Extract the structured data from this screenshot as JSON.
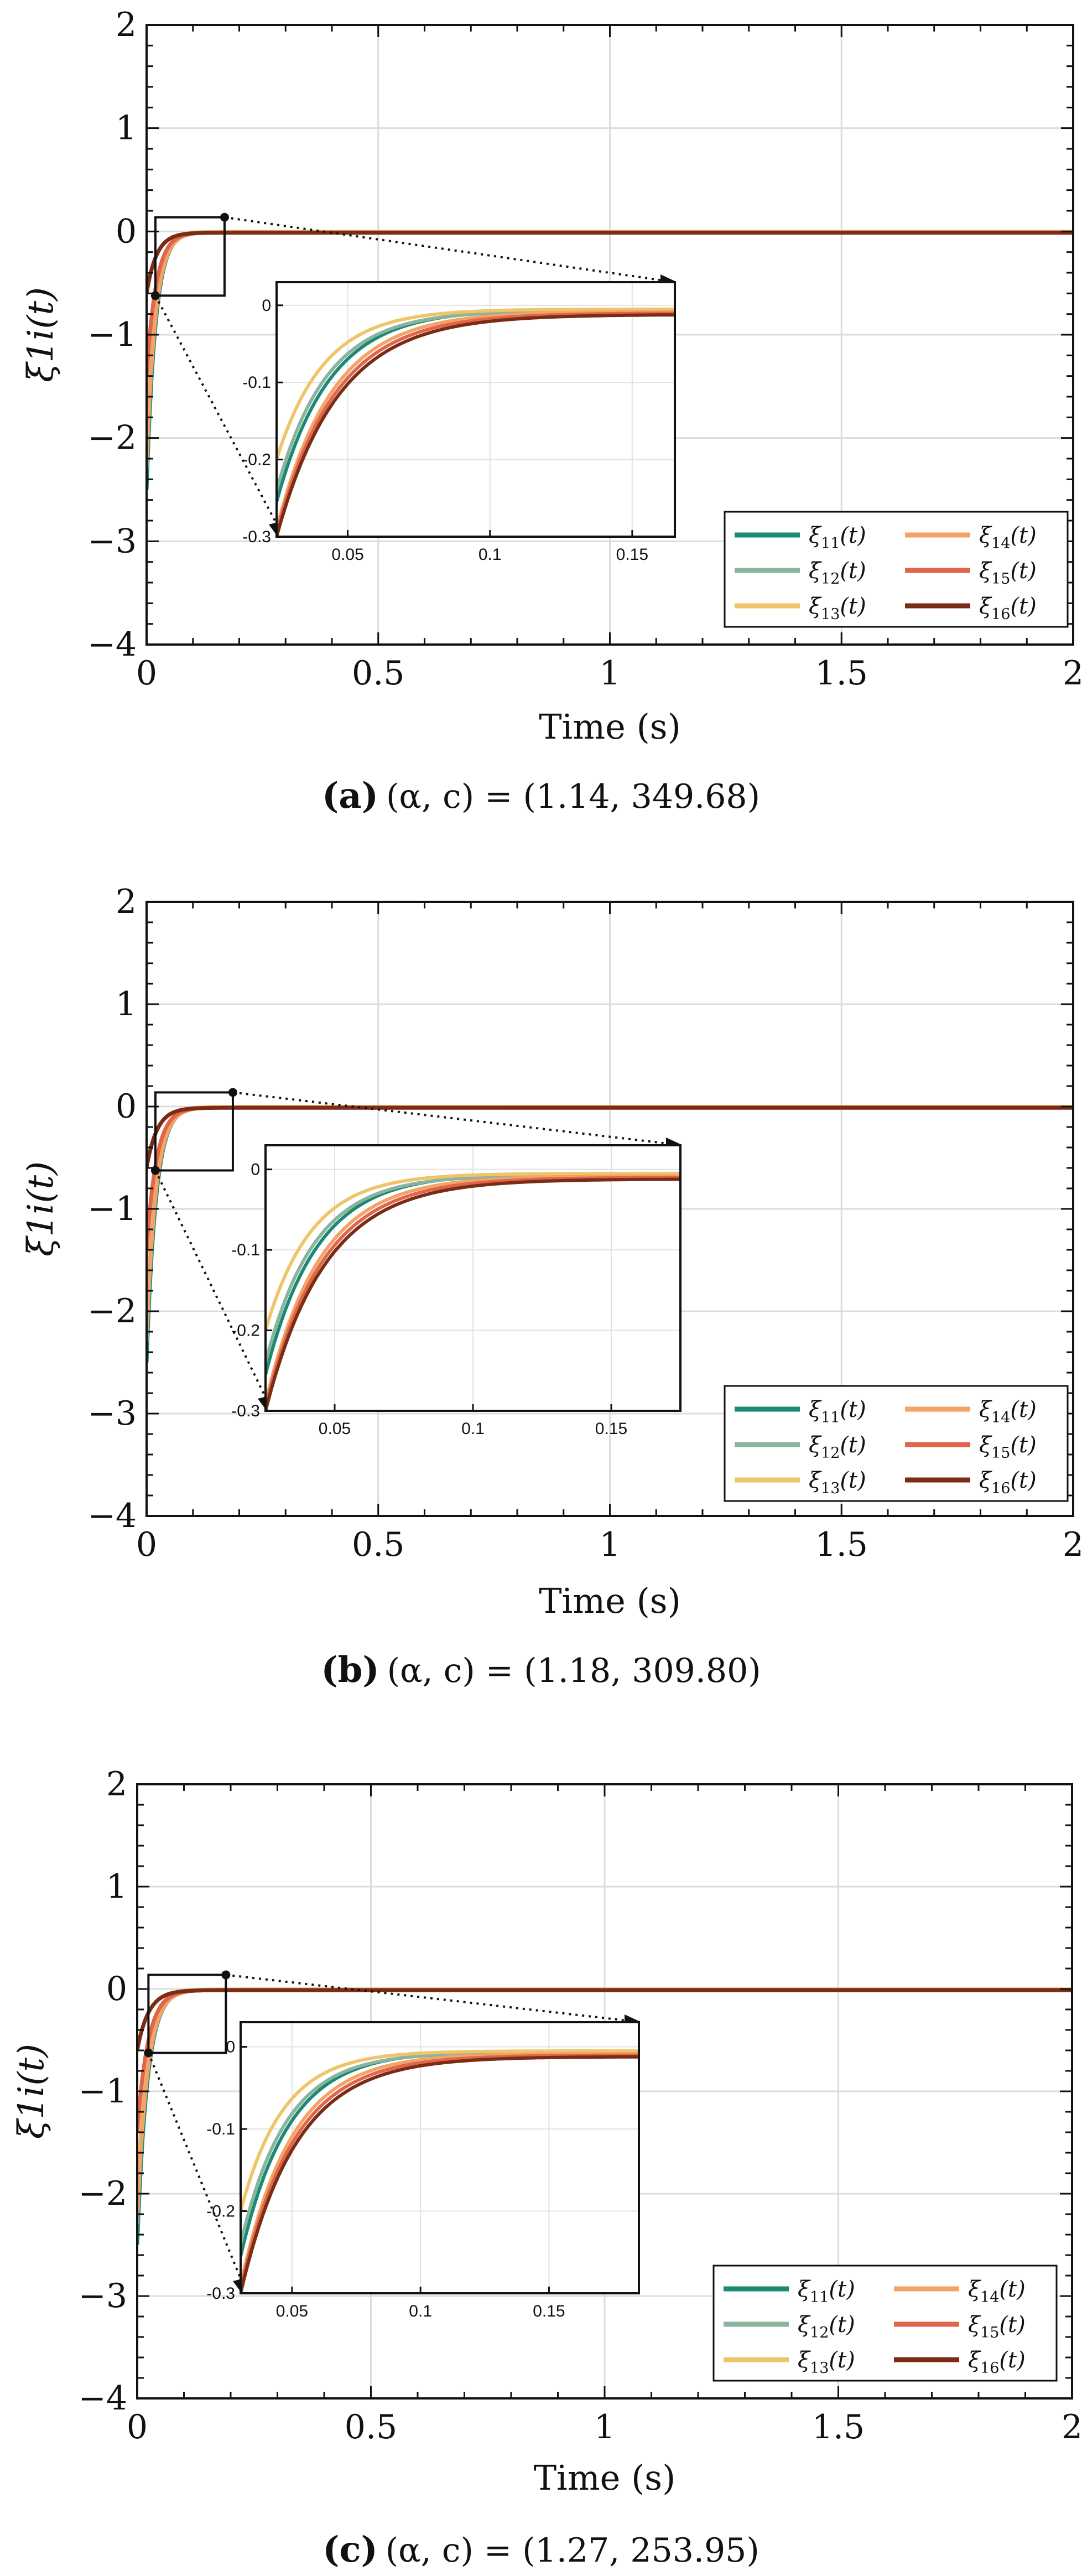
{
  "chart_data": [
    {
      "type": "line",
      "panel": "a",
      "caption_letter": "(a)",
      "caption_text": "(α, c) = (1.14, 349.68)",
      "xlabel": "Time (s)",
      "ylabel": "ξ1i(t)",
      "xlim": [
        0,
        2
      ],
      "ylim": [
        -4,
        2
      ],
      "x_ticks": [
        "0",
        "0.5",
        "1",
        "1.5",
        "2"
      ],
      "y_ticks": [
        "2",
        "1",
        "0",
        "−1",
        "−2",
        "−3",
        "−4"
      ],
      "grid": true,
      "legend_position": "bottom-right",
      "inset": {
        "xlim": [
          0.025,
          0.165
        ],
        "ylim": [
          -0.3,
          0.03
        ],
        "x_ticks": [
          "0.05",
          "0.1",
          "0.15"
        ],
        "y_ticks": [
          "0",
          "-0.1",
          "-0.2",
          "-0.3"
        ]
      },
      "series": [
        {
          "name": "ξ11(t)",
          "sym": "ξ",
          "sub": "11",
          "arg": "(t)",
          "color": "#1b8a73",
          "x0": -2.5,
          "tau": 0.019,
          "final": -0.005
        },
        {
          "name": "ξ12(t)",
          "sym": "ξ",
          "sub": "12",
          "arg": "(t)",
          "color": "#8ab49d",
          "x0": -2.3,
          "tau": 0.0186,
          "final": -0.007
        },
        {
          "name": "ξ13(t)",
          "sym": "ξ",
          "sub": "13",
          "arg": "(t)",
          "color": "#f0c46a",
          "x0": -2.1,
          "tau": 0.0178,
          "final": -0.005
        },
        {
          "name": "ξ14(t)",
          "sym": "ξ",
          "sub": "14",
          "arg": "(t)",
          "color": "#f2a365",
          "x0": -2.2,
          "tau": 0.0196,
          "final": -0.008
        },
        {
          "name": "ξ15(t)",
          "sym": "ξ",
          "sub": "15",
          "arg": "(t)",
          "color": "#e0654a",
          "x0": -1.4,
          "tau": 0.0205,
          "final": -0.01
        },
        {
          "name": "ξ16(t)",
          "sym": "ξ",
          "sub": "16",
          "arg": "(t)",
          "color": "#7a2d14",
          "x0": -0.6,
          "tau": 0.0216,
          "final": -0.012
        }
      ]
    },
    {
      "type": "line",
      "panel": "b",
      "caption_letter": "(b)",
      "caption_text": "(α, c) = (1.18, 309.80)",
      "xlabel": "Time (s)",
      "ylabel": "ξ1i(t)",
      "xlim": [
        0,
        2
      ],
      "ylim": [
        -4,
        2
      ],
      "x_ticks": [
        "0",
        "0.5",
        "1",
        "1.5",
        "2"
      ],
      "y_ticks": [
        "2",
        "1",
        "0",
        "−1",
        "−2",
        "−3",
        "−4"
      ],
      "grid": true,
      "legend_position": "bottom-right",
      "inset": {
        "xlim": [
          0.025,
          0.175
        ],
        "ylim": [
          -0.3,
          0.03
        ],
        "x_ticks": [
          "0.05",
          "0.1",
          "0.15"
        ],
        "y_ticks": [
          "0",
          "-0.1",
          "-0.2",
          "-0.3"
        ]
      },
      "series": [
        {
          "name": "ξ11(t)",
          "sym": "ξ",
          "sub": "11",
          "arg": "(t)",
          "color": "#1b8a73",
          "x0": -2.5,
          "tau": 0.02,
          "final": -0.005
        },
        {
          "name": "ξ12(t)",
          "sym": "ξ",
          "sub": "12",
          "arg": "(t)",
          "color": "#8ab49d",
          "x0": -2.3,
          "tau": 0.0196,
          "final": -0.007
        },
        {
          "name": "ξ13(t)",
          "sym": "ξ",
          "sub": "13",
          "arg": "(t)",
          "color": "#f0c46a",
          "x0": -2.1,
          "tau": 0.0188,
          "final": -0.005
        },
        {
          "name": "ξ14(t)",
          "sym": "ξ",
          "sub": "14",
          "arg": "(t)",
          "color": "#f2a365",
          "x0": -2.2,
          "tau": 0.0206,
          "final": -0.008
        },
        {
          "name": "ξ15(t)",
          "sym": "ξ",
          "sub": "15",
          "arg": "(t)",
          "color": "#e0654a",
          "x0": -1.4,
          "tau": 0.0215,
          "final": -0.01
        },
        {
          "name": "ξ16(t)",
          "sym": "ξ",
          "sub": "16",
          "arg": "(t)",
          "color": "#7a2d14",
          "x0": -0.6,
          "tau": 0.0226,
          "final": -0.012
        }
      ]
    },
    {
      "type": "line",
      "panel": "c",
      "caption_letter": "(c)",
      "caption_text": "(α, c) = (1.27, 253.95)",
      "xlabel": "Time (s)",
      "ylabel": "ξ1i(t)",
      "xlim": [
        0,
        2
      ],
      "ylim": [
        -4,
        2
      ],
      "x_ticks": [
        "0",
        "0.5",
        "1",
        "1.5",
        "2"
      ],
      "y_ticks": [
        "2",
        "1",
        "0",
        "−1",
        "−2",
        "−3",
        "−4"
      ],
      "grid": true,
      "legend_position": "bottom-right",
      "inset": {
        "xlim": [
          0.03,
          0.185
        ],
        "ylim": [
          -0.3,
          0.03
        ],
        "x_ticks": [
          "0.05",
          "0.1",
          "0.15"
        ],
        "y_ticks": [
          "0",
          "-0.1",
          "-0.2",
          "-0.3"
        ]
      },
      "series": [
        {
          "name": "ξ11(t)",
          "sym": "ξ",
          "sub": "11",
          "arg": "(t)",
          "color": "#1b8a73",
          "x0": -2.5,
          "tau": 0.0215,
          "final": -0.005
        },
        {
          "name": "ξ12(t)",
          "sym": "ξ",
          "sub": "12",
          "arg": "(t)",
          "color": "#8ab49d",
          "x0": -2.3,
          "tau": 0.021,
          "final": -0.007
        },
        {
          "name": "ξ13(t)",
          "sym": "ξ",
          "sub": "13",
          "arg": "(t)",
          "color": "#f0c46a",
          "x0": -2.1,
          "tau": 0.02,
          "final": -0.005
        },
        {
          "name": "ξ14(t)",
          "sym": "ξ",
          "sub": "14",
          "arg": "(t)",
          "color": "#f2a365",
          "x0": -2.2,
          "tau": 0.0222,
          "final": -0.008
        },
        {
          "name": "ξ15(t)",
          "sym": "ξ",
          "sub": "15",
          "arg": "(t)",
          "color": "#e0654a",
          "x0": -1.4,
          "tau": 0.0232,
          "final": -0.01
        },
        {
          "name": "ξ16(t)",
          "sym": "ξ",
          "sub": "16",
          "arg": "(t)",
          "color": "#7a2d14",
          "x0": -0.6,
          "tau": 0.0244,
          "final": -0.012
        }
      ]
    }
  ]
}
